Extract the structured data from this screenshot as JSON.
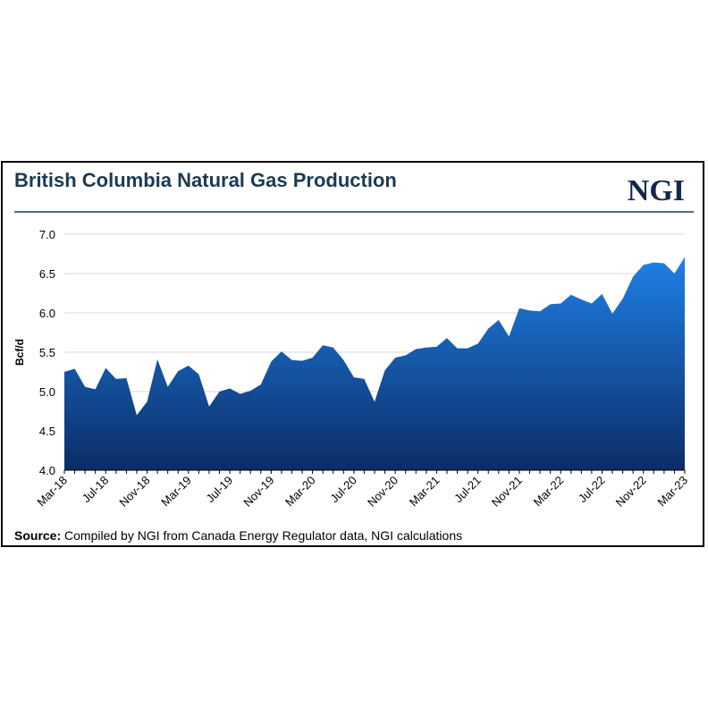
{
  "chart_data": {
    "type": "area",
    "title": "British Columbia Natural Gas Production",
    "logo": "NGI",
    "y_label": "Bcf/d",
    "source_label": "Source:",
    "source": "Compiled by NGI from Canada Energy Regulator data, NGI calculations",
    "categories": [
      "Mar-18",
      null,
      null,
      null,
      "Jul-18",
      null,
      null,
      null,
      "Nov-18",
      null,
      null,
      null,
      "Mar-19",
      null,
      null,
      null,
      "Jul-19",
      null,
      null,
      null,
      "Nov-19",
      null,
      null,
      null,
      "Mar-20",
      null,
      null,
      null,
      "Jul-20",
      null,
      null,
      null,
      "Nov-20",
      null,
      null,
      null,
      "Mar-21",
      null,
      null,
      null,
      "Jul-21",
      null,
      null,
      null,
      "Nov-21",
      null,
      null,
      null,
      "Mar-22",
      null,
      null,
      null,
      "Jul-22",
      null,
      null,
      null,
      "Nov-22",
      null,
      null,
      null,
      "Mar-23"
    ],
    "values": [
      5.25,
      5.29,
      5.06,
      5.03,
      5.3,
      5.16,
      5.17,
      4.7,
      4.87,
      5.41,
      5.06,
      5.26,
      5.33,
      5.22,
      4.81,
      5.0,
      5.04,
      4.97,
      5.01,
      5.09,
      5.38,
      5.51,
      5.4,
      5.39,
      5.43,
      5.59,
      5.56,
      5.4,
      5.18,
      5.16,
      4.87,
      5.27,
      5.43,
      5.46,
      5.54,
      5.56,
      5.57,
      5.68,
      5.55,
      5.55,
      5.61,
      5.8,
      5.91,
      5.7,
      6.06,
      6.03,
      6.02,
      6.11,
      6.12,
      6.23,
      6.17,
      6.12,
      6.24,
      5.99,
      6.18,
      6.46,
      6.61,
      6.64,
      6.63,
      6.5,
      6.71
    ],
    "color": "#1470d4",
    "ylim": [
      4.0,
      7.0
    ],
    "yticks": [
      {
        "value": 4,
        "label": "4.0"
      },
      4.5,
      {
        "value": 5,
        "label": "5.0"
      },
      5.5,
      {
        "value": 6,
        "label": "6.0"
      },
      6.5,
      {
        "value": 7,
        "label": "7.0"
      }
    ],
    "grid": true
  }
}
